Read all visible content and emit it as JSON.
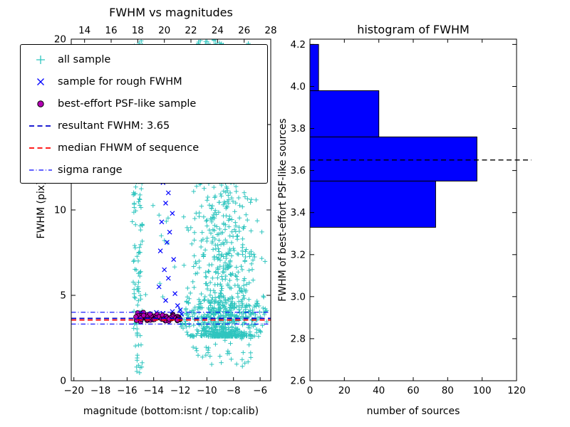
{
  "figure": {
    "background": "#ffffff"
  },
  "colors": {
    "all_sample": "#2fc5bf",
    "rough_sample": "#0000ff",
    "psf_sample_fill": "#b300b3",
    "psf_sample_edge": "#000000",
    "resultant_line": "#0000cc",
    "median_line": "#ff0000",
    "sigma_line": "#0000ff",
    "hist_bar": "#0000ff",
    "hist_dashed": "#000000",
    "axis": "#000000"
  },
  "legend": {
    "items": [
      {
        "label": "all sample",
        "marker": "plus"
      },
      {
        "label": "sample for rough FWHM",
        "marker": "x"
      },
      {
        "label": "best-effort PSF-like sample",
        "marker": "circle"
      },
      {
        "label": "resultant FWHM: 3.65",
        "marker": "dashed-blue"
      },
      {
        "label": "median FHWM of sequence",
        "marker": "dashed-red"
      },
      {
        "label": "sigma range",
        "marker": "dashdot-blue"
      }
    ]
  },
  "chart_data": [
    {
      "type": "scatter",
      "title": "FWHM vs magnitudes",
      "xlabel": "magnitude (bottom:isnt / top:calib)",
      "ylabel": "FWHM (pix)",
      "x_bottom_axis": {
        "range": [
          -20.2,
          -5.2
        ],
        "ticks": [
          -20,
          -18,
          -16,
          -14,
          -12,
          -10,
          -8,
          -6
        ],
        "decimals": 0
      },
      "x_top_axis": {
        "range": [
          13,
          28
        ],
        "ticks": [
          14,
          16,
          18,
          20,
          22,
          24,
          26,
          28
        ],
        "decimals": 0
      },
      "y_axis": {
        "range": [
          0,
          20
        ],
        "ticks": [
          0,
          5,
          10,
          15,
          20
        ],
        "decimals": 0
      },
      "resultant_fwhm": 3.65,
      "series": [
        {
          "name": "all sample",
          "marker": "plus",
          "seed": 42,
          "clusters": [
            {
              "kind": "uniform",
              "n": 140,
              "x": [
                -15.55,
                -14.85
              ],
              "y": [
                0.3,
                20
              ]
            },
            {
              "kind": "powercloud",
              "n": 900,
              "x_mean": -8.8,
              "x_sd": 1.15,
              "x_clip": [
                -12.1,
                -5.5
              ],
              "y_base": 2.6,
              "y_scale": 17,
              "y_pow": 2.8
            },
            {
              "kind": "uniform",
              "n": 110,
              "x": [
                -15.7,
                -5.6
              ],
              "y": [
                3.2,
                20
              ]
            },
            {
              "kind": "uniform",
              "n": 35,
              "x": [
                -10.9,
                -8.7
              ],
              "y": [
                19.2,
                20
              ]
            },
            {
              "kind": "uniform",
              "n": 35,
              "x": [
                -11.3,
                -6.3
              ],
              "y": [
                0.8,
                2.7
              ]
            },
            {
              "kind": "gaussband",
              "n": 150,
              "x": [
                -12.1,
                -5.5
              ],
              "y_mean": 3.8,
              "y_sd": 0.5,
              "y_clip": [
                2.9,
                5.2
              ]
            }
          ]
        },
        {
          "name": "sample for rough FWHM",
          "marker": "x",
          "points": [
            [
              -13.0,
              12.9
            ],
            [
              -12.7,
              12.3
            ],
            [
              -13.3,
              11.6
            ],
            [
              -12.9,
              11.0
            ],
            [
              -13.1,
              10.4
            ],
            [
              -12.6,
              9.8
            ],
            [
              -13.4,
              9.3
            ],
            [
              -12.8,
              8.7
            ],
            [
              -13.0,
              8.1
            ],
            [
              -13.5,
              7.6
            ],
            [
              -12.5,
              7.1
            ],
            [
              -13.2,
              6.5
            ],
            [
              -12.9,
              6.0
            ],
            [
              -13.6,
              5.5
            ],
            [
              -12.4,
              5.1
            ],
            [
              -13.1,
              4.7
            ],
            [
              -12.2,
              4.4
            ],
            [
              -12.0,
              4.15
            ],
            [
              -13.8,
              4.0
            ],
            [
              -12.6,
              4.05
            ],
            [
              -13.3,
              3.95
            ],
            [
              -11.9,
              3.9
            ]
          ]
        },
        {
          "name": "best-effort PSF-like sample",
          "marker": "circle",
          "seed": 7,
          "clusters": [
            {
              "kind": "gaussband",
              "n": 48,
              "x": [
                -15.35,
                -13.3
              ],
              "y_mean": 3.7,
              "y_sd": 0.14,
              "y_clip": [
                3.4,
                4.0
              ]
            },
            {
              "kind": "gaussband",
              "n": 26,
              "x": [
                -13.3,
                -12.0
              ],
              "y_mean": 3.65,
              "y_sd": 0.12,
              "y_clip": [
                3.42,
                3.95
              ]
            }
          ]
        }
      ],
      "lines": [
        {
          "name": "resultant FWHM",
          "y": 3.65,
          "style": "dashed",
          "color_key": "resultant_line"
        },
        {
          "name": "median FHWM of sequence",
          "y": 3.56,
          "style": "dashed",
          "color_key": "median_line"
        },
        {
          "name": "sigma range low",
          "y": 3.32,
          "style": "dashdot",
          "color_key": "sigma_line"
        },
        {
          "name": "sigma range high",
          "y": 4.01,
          "style": "dashdot",
          "color_key": "sigma_line"
        }
      ]
    },
    {
      "type": "bar",
      "orientation": "horizontal",
      "title": "histogram of FWHM",
      "xlabel": "number of sources",
      "ylabel": "FWHM of best-effort PSF-like sources",
      "bin_edges": [
        3.33,
        3.55,
        3.76,
        3.98,
        4.2
      ],
      "counts": [
        73,
        97,
        40,
        5
      ],
      "x_axis": {
        "range": [
          0,
          120
        ],
        "ticks": [
          0,
          20,
          40,
          60,
          80,
          100,
          120
        ],
        "decimals": 0
      },
      "y_axis": {
        "range": [
          2.6,
          4.225
        ],
        "ticks": [
          2.6,
          2.8,
          3.0,
          3.2,
          3.4,
          3.6,
          3.8,
          4.0,
          4.2
        ],
        "decimals": 1
      },
      "dashed_line_y": 3.65
    }
  ]
}
